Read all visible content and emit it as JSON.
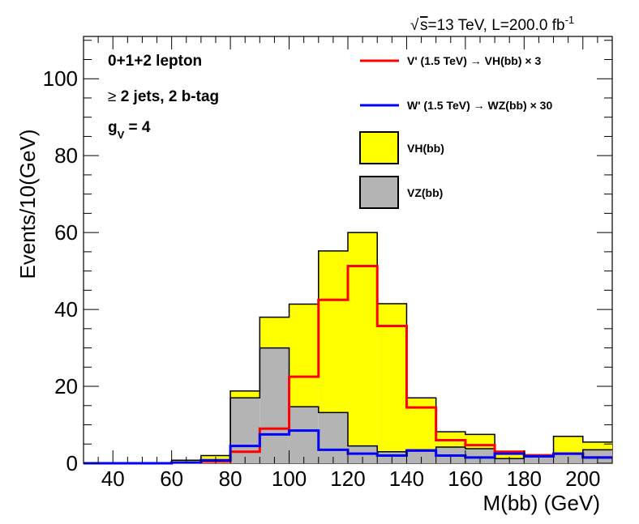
{
  "chart_data": {
    "type": "bar",
    "title": "",
    "header": {
      "sqrt_s": "s",
      "header_rest": "=13 TeV, L=200.0 fb",
      "header_sup": "-1"
    },
    "annotations": {
      "line1": "0+1+2 lepton",
      "line2_symbol": "≥",
      "line2_text": " 2 jets, 2 b-tag",
      "line3_g": "g",
      "line3_sub": "V",
      "line3_val": " = 4"
    },
    "xlabel": "M(bb) (GeV)",
    "ylabel": "Events/10(GeV)",
    "xlim": [
      30,
      210
    ],
    "ylim": [
      0,
      111
    ],
    "x_ticks": [
      "40",
      "60",
      "80",
      "100",
      "120",
      "140",
      "160",
      "180",
      "200"
    ],
    "y_ticks": [
      "0",
      "20",
      "40",
      "60",
      "80",
      "100"
    ],
    "bin_edges": [
      30,
      40,
      50,
      60,
      70,
      80,
      90,
      100,
      110,
      120,
      130,
      140,
      150,
      160,
      170,
      180,
      190,
      200,
      210
    ],
    "series": [
      {
        "name": "VZ(bb)",
        "kind": "stack",
        "color": "#b4b4b4",
        "values": [
          0,
          0,
          0,
          0.3,
          0.5,
          17,
          30,
          14.7,
          13.2,
          4.5,
          3,
          3.5,
          4.2,
          3.8,
          1.2,
          2,
          2.5,
          3.5
        ]
      },
      {
        "name": "VH(bb)",
        "kind": "stack",
        "color": "#ffff00",
        "values": [
          0,
          0,
          0,
          0.5,
          1.5,
          1.8,
          8,
          26.7,
          42,
          55.5,
          38.5,
          13.5,
          4,
          3.7,
          1.8,
          0.2,
          4.5,
          2
        ]
      },
      {
        "name": "V' (1.5 TeV) → VH(bb) × 3",
        "kind": "line",
        "color": "#ff0000",
        "values": [
          0,
          0,
          0,
          0.2,
          0.5,
          3,
          9,
          22.5,
          42.5,
          51.3,
          35.7,
          14.5,
          6,
          4.7,
          3,
          2,
          2.5,
          1.5
        ]
      },
      {
        "name": "W' (1.5 TeV) → WZ(bb) × 30",
        "kind": "line",
        "color": "#0000ff",
        "values": [
          0,
          0,
          0,
          0.2,
          0.8,
          4.5,
          7.5,
          8.5,
          3.5,
          2.5,
          2,
          3.3,
          2,
          1.5,
          2.5,
          1.8,
          2.5,
          1.5
        ]
      }
    ],
    "legend": {
      "position": "top-right",
      "entries": [
        {
          "label": "V' (1.5 TeV) → VH(bb) × 3",
          "kind": "line",
          "color": "#ff0000"
        },
        {
          "label": "W' (1.5 TeV) → WZ(bb) × 30",
          "kind": "line",
          "color": "#0000ff"
        },
        {
          "label": "VH(bb)",
          "kind": "box",
          "color": "#ffff00"
        },
        {
          "label": "VZ(bb)",
          "kind": "box",
          "color": "#b4b4b4"
        }
      ]
    }
  }
}
